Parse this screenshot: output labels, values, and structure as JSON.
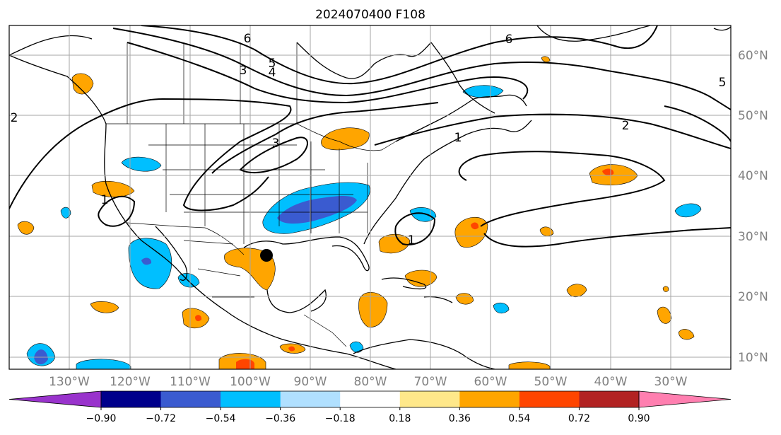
{
  "title": "2024070400 F108",
  "map": {
    "latitude_labels": [
      "60°N",
      "50°N",
      "40°N",
      "30°N",
      "20°N",
      "10°N"
    ],
    "longitude_labels": [
      "130°W",
      "120°W",
      "110°W",
      "100°W",
      "90°W",
      "80°W",
      "70°W",
      "60°W",
      "50°W",
      "40°W",
      "30°W"
    ],
    "contour_labels": [
      "6",
      "6",
      "5",
      "5",
      "4",
      "3",
      "3",
      "2",
      "2",
      "1",
      "1",
      "1"
    ],
    "grid": true,
    "marker": "black dot near Texas Gulf coast"
  },
  "colorbar": {
    "tick_labels": [
      "−0.90",
      "−0.72",
      "−0.54",
      "−0.36",
      "−0.18",
      "0.18",
      "0.36",
      "0.54",
      "0.72",
      "0.90"
    ],
    "colors": [
      "#9933cc",
      "#00008b",
      "#3a5bd0",
      "#00bfff",
      "#b0e0ff",
      "#ffffff",
      "#ffe88a",
      "#ffa500",
      "#ff4500",
      "#b22222",
      "#ff7fb0"
    ],
    "extend": "both"
  }
}
